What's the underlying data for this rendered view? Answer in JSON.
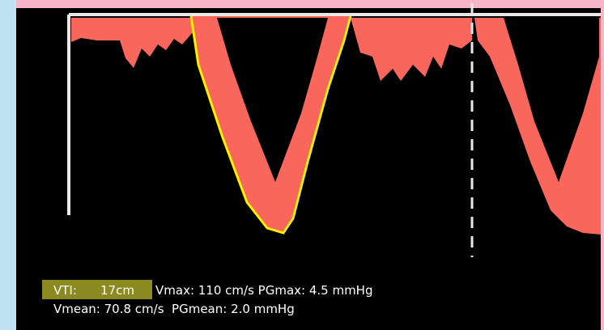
{
  "measurements": {
    "vti_label": "VTI:",
    "vti_value": "17cm",
    "line1": "Vmax: 110 cm/s PGmax: 4.5 mmHg",
    "line2": "Vmean: 70.8 cm/s  PGmean: 2.0 mmHg"
  }
}
